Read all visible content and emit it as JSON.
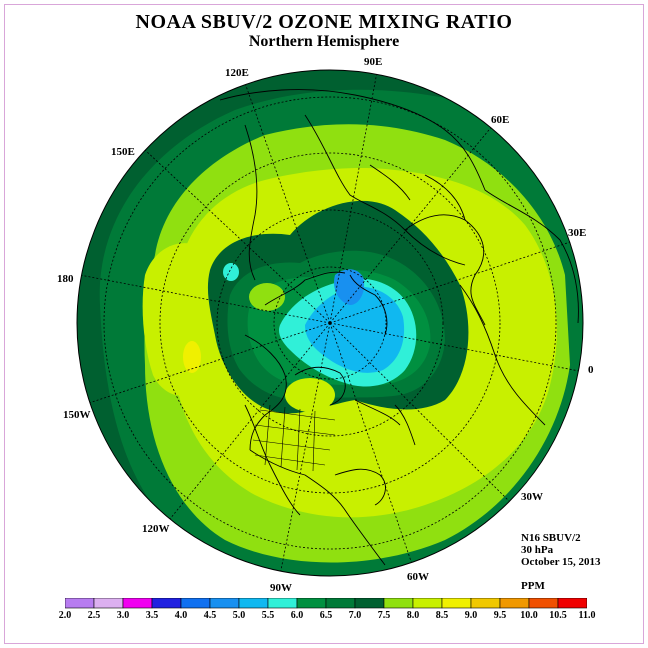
{
  "header": {
    "title": "NOAA SBUV/2 OZONE MIXING RATIO",
    "subtitle": "Northern Hemisphere"
  },
  "longitude_labels": {
    "e90": "90E",
    "e60": "60E",
    "e30": "30E",
    "zero": "0",
    "w30": "30W",
    "w60": "60W",
    "w90": "90W",
    "w120": "120W",
    "w150": "150W",
    "d180": "180",
    "e150": "150E",
    "e120": "120E"
  },
  "info": {
    "instrument": "N16 SBUV/2",
    "level": "30 hPa",
    "date": "October 15, 2013",
    "units": "PPM"
  },
  "colorbar": {
    "labels": [
      "2.0",
      "2.5",
      "3.0",
      "3.5",
      "4.0",
      "4.5",
      "5.0",
      "5.5",
      "6.0",
      "6.5",
      "7.0",
      "7.5",
      "8.0",
      "8.5",
      "9.0",
      "9.5",
      "10.0",
      "10.5",
      "11.0"
    ],
    "colors": [
      "#b77cf0",
      "#dcb0f0",
      "#f000f0",
      "#2020e0",
      "#1070f0",
      "#1890f0",
      "#10b8f0",
      "#30f0d8",
      "#009040",
      "#007a38",
      "#006030",
      "#90e010",
      "#c8f000",
      "#f0f000",
      "#f0c800",
      "#f09800",
      "#f05000",
      "#f00000",
      "#7a4a30"
    ]
  },
  "map_colors": {
    "deep_green": "#006030",
    "mid_green": "#007a38",
    "green": "#009040",
    "light_green": "#90e010",
    "yellow_green": "#c8f000",
    "yellow": "#f0f000",
    "cyan": "#30f0d8",
    "light_blue": "#10b8f0",
    "blue": "#1890f0"
  }
}
